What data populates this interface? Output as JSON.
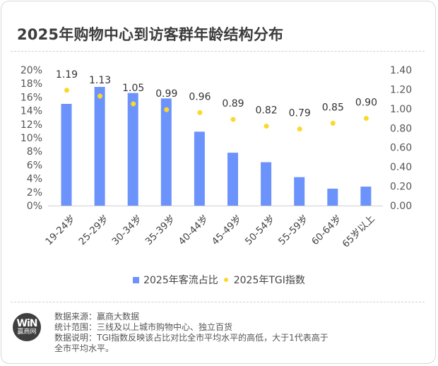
{
  "title": "2025年购物中心到访客群年龄结构分布",
  "chart_data": {
    "type": "bar",
    "title": "2025年购物中心到访客群年龄结构分布",
    "categories": [
      "19-24岁",
      "25-29岁",
      "30-34岁",
      "35-39岁",
      "40-44岁",
      "45-49岁",
      "50-54岁",
      "55-59岁",
      "60-64岁",
      "65岁以上"
    ],
    "series": [
      {
        "name": "2025年客流占比",
        "type": "bar",
        "axis": "left",
        "values": [
          15.0,
          17.5,
          16.6,
          15.8,
          10.9,
          7.8,
          6.4,
          4.2,
          2.5,
          2.8
        ],
        "color": "#6b93fb"
      },
      {
        "name": "2025年TGI指数",
        "type": "scatter",
        "axis": "right",
        "values": [
          1.19,
          1.13,
          1.05,
          0.99,
          0.96,
          0.89,
          0.82,
          0.79,
          0.85,
          0.9
        ],
        "labels": [
          "1.19",
          "1.13",
          "1.05",
          "0.99",
          "0.96",
          "0.89",
          "0.82",
          "0.79",
          "0.85",
          "0.90"
        ],
        "color": "#fcd82b"
      }
    ],
    "y_left": {
      "ylim": [
        0,
        20
      ],
      "ticks": [
        "0%",
        "2%",
        "4%",
        "6%",
        "8%",
        "10%",
        "12%",
        "14%",
        "16%",
        "18%",
        "20%"
      ]
    },
    "y_right": {
      "ylim": [
        0,
        1.4
      ],
      "ticks": [
        "0.00",
        "0.20",
        "0.40",
        "0.60",
        "0.80",
        "1.00",
        "1.20",
        "1.40"
      ]
    },
    "xlabel": "",
    "ylabel": "",
    "grid": false,
    "legend": "bottom"
  },
  "legend": {
    "bar": "2025年客流占比",
    "dot": "2025年TGI指数"
  },
  "logo": {
    "mark": "WiN",
    "name": "赢商网"
  },
  "notes": [
    "数据来源：赢商大数据",
    "统计范围：三线及以上城市购物中心、独立百货",
    "数据说明：TGI指数反映该占比对比全市平均水平的高低，大于1代表高于",
    "全市平均水平。"
  ]
}
